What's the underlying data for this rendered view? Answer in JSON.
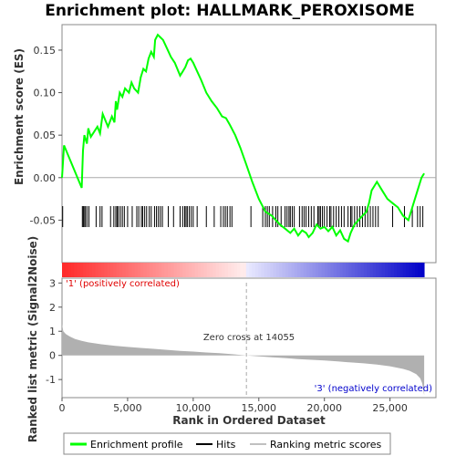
{
  "chart_data": {
    "type": "line",
    "title": "Enrichment plot: HALLMARK_PEROXISOME",
    "top_panel": {
      "ylabel": "Enrichment score (ES)",
      "ylim": [
        -0.1,
        0.18
      ],
      "yticks": [
        "0.15",
        "0.10",
        "0.05",
        "0.00",
        "-0.05"
      ],
      "ytick_values": [
        0.15,
        0.1,
        0.05,
        0.0,
        -0.05
      ],
      "series": [
        {
          "name": "Enrichment profile",
          "color": "#00ff00",
          "x": [
            0,
            150,
            1500,
            1600,
            1700,
            1900,
            2000,
            2200,
            2700,
            2900,
            3100,
            3500,
            3800,
            4000,
            4100,
            4200,
            4400,
            4600,
            4800,
            5100,
            5300,
            5500,
            5800,
            6000,
            6200,
            6400,
            6600,
            6800,
            7000,
            7100,
            7300,
            7500,
            7700,
            8000,
            8300,
            8600,
            9000,
            9200,
            9400,
            9600,
            9800,
            10000,
            10300,
            10600,
            11000,
            11400,
            11800,
            12200,
            12500,
            12800,
            13200,
            13600,
            14055,
            14500,
            15000,
            15500,
            16000,
            16300,
            16600,
            17000,
            17400,
            17700,
            18000,
            18300,
            18600,
            18800,
            19100,
            19400,
            19700,
            20000,
            20300,
            20600,
            20900,
            21200,
            21500,
            21800,
            22000,
            22300,
            22600,
            22900,
            23200,
            23400,
            23600,
            23800,
            24000,
            24400,
            24800,
            25200,
            25600,
            26000,
            26400,
            26800,
            27000,
            27200,
            27400,
            27600
          ],
          "y": [
            0.0,
            0.038,
            -0.012,
            0.032,
            0.05,
            0.04,
            0.058,
            0.048,
            0.06,
            0.052,
            0.075,
            0.06,
            0.072,
            0.065,
            0.09,
            0.08,
            0.1,
            0.095,
            0.105,
            0.1,
            0.112,
            0.105,
            0.1,
            0.118,
            0.128,
            0.125,
            0.14,
            0.148,
            0.142,
            0.162,
            0.168,
            0.165,
            0.162,
            0.152,
            0.142,
            0.135,
            0.12,
            0.125,
            0.13,
            0.138,
            0.14,
            0.135,
            0.125,
            0.115,
            0.1,
            0.09,
            0.082,
            0.072,
            0.07,
            0.062,
            0.05,
            0.035,
            0.015,
            -0.005,
            -0.025,
            -0.04,
            -0.045,
            -0.05,
            -0.055,
            -0.06,
            -0.065,
            -0.06,
            -0.068,
            -0.062,
            -0.065,
            -0.07,
            -0.065,
            -0.055,
            -0.06,
            -0.058,
            -0.063,
            -0.058,
            -0.068,
            -0.062,
            -0.072,
            -0.075,
            -0.065,
            -0.055,
            -0.05,
            -0.045,
            -0.04,
            -0.03,
            -0.015,
            -0.01,
            -0.005,
            -0.015,
            -0.025,
            -0.03,
            -0.035,
            -0.045,
            -0.05,
            -0.03,
            -0.02,
            -0.01,
            0.0,
            0.005
          ]
        }
      ]
    },
    "hits": [
      50,
      1550,
      1620,
      1680,
      1780,
      1900,
      2050,
      2600,
      2900,
      3050,
      3700,
      3950,
      4100,
      4200,
      4300,
      4450,
      4600,
      4750,
      5000,
      5350,
      5700,
      5850,
      6050,
      6150,
      6300,
      6450,
      6650,
      6800,
      7050,
      7200,
      7350,
      7500,
      7650,
      8100,
      8500,
      9000,
      9200,
      9350,
      9450,
      9550,
      9700,
      9850,
      10000,
      10300,
      11000,
      11600,
      12100,
      12300,
      12450,
      12600,
      12800,
      12950,
      14400,
      15300,
      15500,
      15650,
      15800,
      16050,
      16300,
      16450,
      16700,
      17000,
      17150,
      17300,
      17400,
      17550,
      17700,
      18100,
      18300,
      18450,
      18600,
      18800,
      19000,
      19200,
      19500,
      19600,
      19700,
      19850,
      20000,
      20200,
      20400,
      20500,
      20700,
      20900,
      21100,
      21300,
      21500,
      21800,
      22000,
      22100,
      22300,
      22500,
      22700,
      22900,
      23100,
      23300,
      23500,
      23700,
      23900,
      24100,
      25200,
      26100,
      26700,
      27100,
      27300,
      27500
    ],
    "color_bar": {
      "label_positive": "'1' (positively correlated)",
      "label_negative": "'3' (negatively correlated)"
    },
    "bottom_panel": {
      "ylabel": "Ranked list metric (Signal2Noise)",
      "xlabel": "Rank in Ordered Dataset",
      "ylim": [
        -1.75,
        3.2
      ],
      "yticks": [
        "3",
        "2",
        "1",
        "0",
        "-1"
      ],
      "ytick_values": [
        3,
        2,
        1,
        0,
        -1
      ],
      "xlim": [
        0,
        28500
      ],
      "xticks": [
        "0",
        "5,000",
        "10,000",
        "15,000",
        "20,000",
        "25,000"
      ],
      "xtick_values": [
        0,
        5000,
        10000,
        15000,
        20000,
        25000
      ],
      "zero_cross": 14055,
      "zero_cross_label": "Zero cross at 14055",
      "n_genes": 27600,
      "metric_profile": {
        "x": [
          0,
          100,
          300,
          600,
          1000,
          1500,
          2000,
          3000,
          4000,
          5000,
          6000,
          7000,
          8000,
          9000,
          10000,
          11000,
          12000,
          13000,
          14055,
          15000,
          16000,
          17000,
          18000,
          19000,
          20000,
          21000,
          22000,
          23000,
          24000,
          25000,
          26000,
          26500,
          27000,
          27300,
          27450,
          27550,
          27600
        ],
        "y": [
          1.3,
          1.0,
          0.88,
          0.78,
          0.68,
          0.6,
          0.54,
          0.46,
          0.4,
          0.35,
          0.31,
          0.27,
          0.23,
          0.19,
          0.16,
          0.12,
          0.09,
          0.05,
          0.0,
          -0.04,
          -0.08,
          -0.11,
          -0.15,
          -0.18,
          -0.21,
          -0.25,
          -0.29,
          -0.33,
          -0.38,
          -0.45,
          -0.56,
          -0.64,
          -0.78,
          -0.95,
          -1.15,
          -1.45,
          -1.65
        ]
      }
    },
    "legend": {
      "items": [
        {
          "label": "Enrichment profile",
          "color": "#00ff00"
        },
        {
          "label": "Hits",
          "color": "#000000"
        },
        {
          "label": "Ranking metric scores",
          "color": "#c0c0c0"
        }
      ]
    }
  }
}
